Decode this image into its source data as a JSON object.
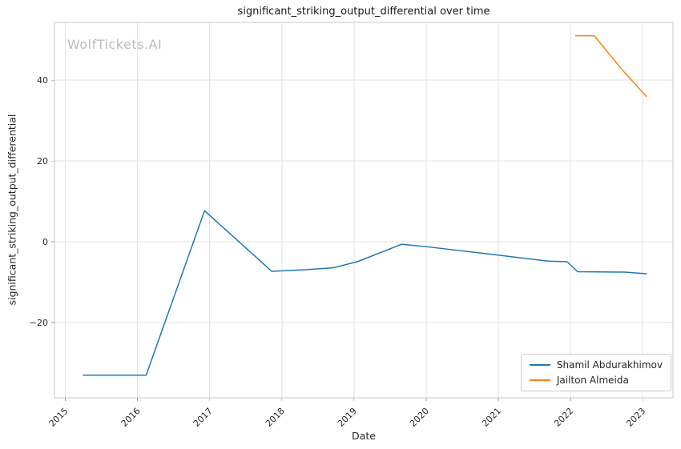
{
  "chart_data": {
    "type": "line",
    "title": "significant_striking_output_differential over time",
    "xlabel": "Date",
    "ylabel": "significant_striking_output_differential",
    "watermark": "WolfTickets.AI",
    "grid": true,
    "legend_position": "lower right",
    "xlim": [
      2014.85,
      2023.42
    ],
    "ylim": [
      -38.6,
      54.3
    ],
    "x_ticks": [
      2015,
      2016,
      2017,
      2018,
      2019,
      2020,
      2021,
      2022,
      2023
    ],
    "x_tick_labels": [
      "2015",
      "2016",
      "2017",
      "2018",
      "2019",
      "2020",
      "2021",
      "2022",
      "2023"
    ],
    "y_ticks": [
      -20,
      0,
      20,
      40
    ],
    "y_tick_labels": [
      "−20",
      "0",
      "20",
      "40"
    ],
    "series": [
      {
        "name": "Shamil Abdurakhimov",
        "color": "#1f77b4",
        "x": [
          2015.25,
          2016.12,
          2016.93,
          2017.86,
          2018.33,
          2018.72,
          2019.05,
          2019.66,
          2020.0,
          2021.0,
          2021.7,
          2021.95,
          2022.1,
          2022.75,
          2023.05
        ],
        "y": [
          -33,
          -33,
          7.7,
          -7.3,
          -6.9,
          -6.4,
          -4.9,
          -0.6,
          -1.2,
          -3.3,
          -4.8,
          -4.9,
          -7.4,
          -7.5,
          -7.9
        ]
      },
      {
        "name": "Jailton Almeida",
        "color": "#ff7f0e",
        "x": [
          2022.07,
          2022.33,
          2022.72,
          2023.05
        ],
        "y": [
          51,
          51,
          42.5,
          36
        ]
      }
    ]
  }
}
